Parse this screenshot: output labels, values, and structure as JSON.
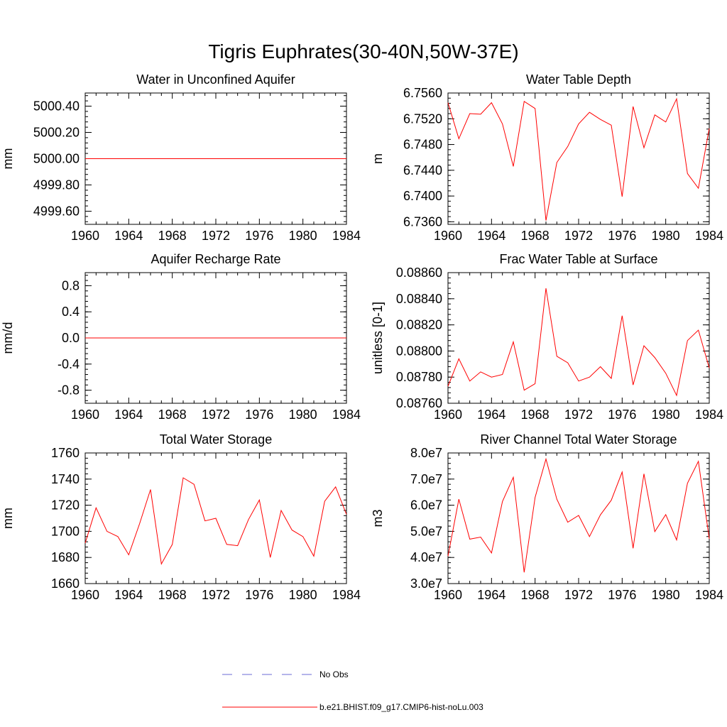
{
  "figure": {
    "title": "Tigris Euphrates(30-40N,50W-37E)",
    "legend": [
      {
        "label": "No Obs",
        "color": "#6b6bd6",
        "style": "dashed"
      },
      {
        "label": "b.e21.BHIST.f09_g17.CMIP6-hist-noLu.003",
        "color": "#ff0000",
        "style": "solid"
      }
    ]
  },
  "chart_data": [
    {
      "type": "line",
      "title": "Water in Unconfined Aquifer",
      "xlabel": "",
      "ylabel": "mm",
      "xlim": [
        1960,
        1984
      ],
      "ylim": [
        4999.5,
        5000.5
      ],
      "xticks": [
        "1960",
        "1964",
        "1968",
        "1972",
        "1976",
        "1980",
        "1984"
      ],
      "yticks": [
        "5000.40",
        "5000.20",
        "5000.00",
        "4999.80",
        "4999.60"
      ],
      "ytick_values": [
        5000.4,
        5000.2,
        5000.0,
        4999.8,
        4999.6
      ],
      "series": [
        {
          "color": "#ff0000",
          "x": [
            1960,
            1984
          ],
          "y": [
            5000.0,
            5000.0
          ]
        }
      ]
    },
    {
      "type": "line",
      "title": "Water Table Depth",
      "xlabel": "",
      "ylabel": "m",
      "xlim": [
        1960,
        1984
      ],
      "ylim": [
        6.7356,
        6.756
      ],
      "xticks": [
        "1960",
        "1964",
        "1968",
        "1972",
        "1976",
        "1980",
        "1984"
      ],
      "yticks": [
        "6.7560",
        "6.7520",
        "6.7480",
        "6.7440",
        "6.7400",
        "6.7360"
      ],
      "ytick_values": [
        6.756,
        6.752,
        6.748,
        6.744,
        6.74,
        6.736
      ],
      "series": [
        {
          "color": "#ff0000",
          "x": [
            1960,
            1961,
            1962,
            1963,
            1964,
            1965,
            1966,
            1967,
            1968,
            1969,
            1970,
            1971,
            1972,
            1973,
            1974,
            1975,
            1976,
            1977,
            1978,
            1979,
            1980,
            1981,
            1982,
            1983,
            1984
          ],
          "y": [
            6.7545,
            6.7489,
            6.7528,
            6.7527,
            6.7545,
            6.7512,
            6.7446,
            6.7547,
            6.7536,
            6.7362,
            6.7452,
            6.7477,
            6.7512,
            6.753,
            6.7519,
            6.751,
            6.7399,
            6.7539,
            6.7475,
            6.7526,
            6.7515,
            6.7551,
            6.7435,
            6.7412,
            6.7505
          ]
        }
      ]
    },
    {
      "type": "line",
      "title": "Aquifer Recharge Rate",
      "xlabel": "",
      "ylabel": "mm/d",
      "xlim": [
        1960,
        1984
      ],
      "ylim": [
        -1.0,
        1.0
      ],
      "xticks": [
        "1960",
        "1964",
        "1968",
        "1972",
        "1976",
        "1980",
        "1984"
      ],
      "yticks": [
        "0.8",
        "0.4",
        "0.0",
        "-0.4",
        "-0.8"
      ],
      "ytick_values": [
        0.8,
        0.4,
        0.0,
        -0.4,
        -0.8
      ],
      "series": [
        {
          "color": "#ff0000",
          "x": [
            1960,
            1984
          ],
          "y": [
            0.0,
            0.0
          ]
        }
      ]
    },
    {
      "type": "line",
      "title": "Frac Water Table at Surface",
      "xlabel": "",
      "ylabel": "unitless [0-1]",
      "xlim": [
        1960,
        1984
      ],
      "ylim": [
        0.0876,
        0.0886
      ],
      "xticks": [
        "1960",
        "1964",
        "1968",
        "1972",
        "1976",
        "1980",
        "1984"
      ],
      "yticks": [
        "0.08860",
        "0.08840",
        "0.08820",
        "0.08800",
        "0.08780",
        "0.08760"
      ],
      "ytick_values": [
        0.0886,
        0.0884,
        0.0882,
        0.088,
        0.0878,
        0.0876
      ],
      "series": [
        {
          "color": "#ff0000",
          "x": [
            1960,
            1961,
            1962,
            1963,
            1964,
            1965,
            1966,
            1967,
            1968,
            1969,
            1970,
            1971,
            1972,
            1973,
            1974,
            1975,
            1976,
            1977,
            1978,
            1979,
            1980,
            1981,
            1982,
            1983,
            1984
          ],
          "y": [
            0.08773,
            0.08794,
            0.08777,
            0.08784,
            0.0878,
            0.08782,
            0.08807,
            0.0877,
            0.08775,
            0.08848,
            0.08796,
            0.08791,
            0.08777,
            0.0878,
            0.08788,
            0.08779,
            0.08827,
            0.08774,
            0.08804,
            0.08795,
            0.08783,
            0.08766,
            0.08808,
            0.08816,
            0.08787
          ]
        }
      ]
    },
    {
      "type": "line",
      "title": "Total Water Storage",
      "xlabel": "",
      "ylabel": "mm",
      "xlim": [
        1960,
        1984
      ],
      "ylim": [
        1660,
        1760
      ],
      "xticks": [
        "1960",
        "1964",
        "1968",
        "1972",
        "1976",
        "1980",
        "1984"
      ],
      "yticks": [
        "1760",
        "1740",
        "1720",
        "1700",
        "1680",
        "1660"
      ],
      "ytick_values": [
        1760,
        1740,
        1720,
        1700,
        1680,
        1660
      ],
      "series": [
        {
          "color": "#ff0000",
          "x": [
            1960,
            1961,
            1962,
            1963,
            1964,
            1965,
            1966,
            1967,
            1968,
            1969,
            1970,
            1971,
            1972,
            1973,
            1974,
            1975,
            1976,
            1977,
            1978,
            1979,
            1980,
            1981,
            1982,
            1983,
            1984
          ],
          "y": [
            1691,
            1718,
            1700,
            1696,
            1682,
            1706,
            1732,
            1675,
            1690,
            1741,
            1736,
            1708,
            1710,
            1690,
            1689,
            1709,
            1724,
            1680,
            1716,
            1701,
            1696,
            1681,
            1723,
            1734,
            1713
          ]
        }
      ]
    },
    {
      "type": "line",
      "title": "River Channel Total Water Storage",
      "xlabel": "",
      "ylabel": "m3",
      "xlim": [
        1960,
        1984
      ],
      "ylim": [
        30000000,
        80000000
      ],
      "xticks": [
        "1960",
        "1964",
        "1968",
        "1972",
        "1976",
        "1980",
        "1984"
      ],
      "yticks": [
        "8.0e7",
        "7.0e7",
        "6.0e7",
        "5.0e7",
        "4.0e7",
        "3.0e7"
      ],
      "ytick_values": [
        80000000,
        70000000,
        60000000,
        50000000,
        40000000,
        30000000
      ],
      "series": [
        {
          "color": "#ff0000",
          "x": [
            1960,
            1961,
            1962,
            1963,
            1964,
            1965,
            1966,
            1967,
            1968,
            1969,
            1970,
            1971,
            1972,
            1973,
            1974,
            1975,
            1976,
            1977,
            1978,
            1979,
            1980,
            1981,
            1982,
            1983,
            1984
          ],
          "y": [
            40500000,
            62300000,
            47000000,
            47800000,
            41700000,
            61400000,
            70700000,
            34300000,
            63000000,
            77700000,
            62300000,
            53500000,
            56100000,
            48000000,
            56300000,
            61900000,
            72700000,
            43500000,
            72000000,
            49900000,
            56400000,
            46700000,
            68400000,
            76800000,
            47100000
          ]
        }
      ]
    }
  ]
}
